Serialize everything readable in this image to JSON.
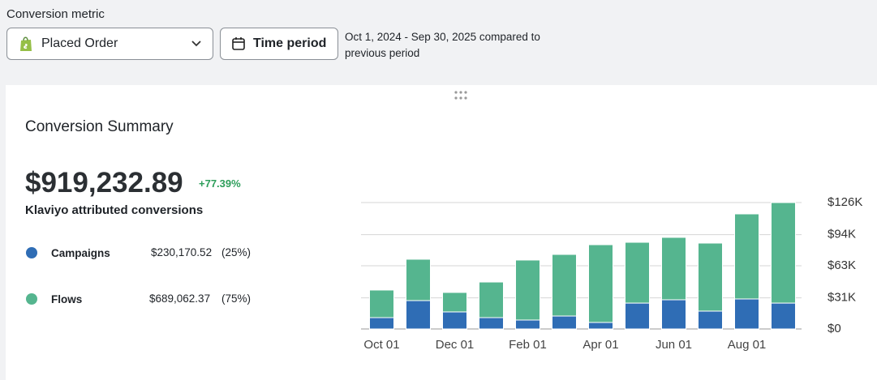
{
  "header": {
    "metric_label": "Conversion metric",
    "metric_select": "Placed Order",
    "time_button": "Time period",
    "period_text": "Oct 1, 2024 - Sep 30, 2025 compared to previous period"
  },
  "summary": {
    "title": "Conversion Summary",
    "total": "$919,232.89",
    "change": "+77.39%",
    "total_label": "Klaviyo attributed conversions",
    "rows": [
      {
        "amount": "$230,170.52",
        "share": "(25%)"
      },
      {
        "amount": "$689,062.37",
        "share": "(75%)"
      }
    ]
  },
  "chart_data": {
    "type": "stacked-bar",
    "categories": [
      "Oct 01",
      null,
      "Dec 01",
      null,
      "Feb 01",
      null,
      "Apr 01",
      null,
      "Jun 01",
      null,
      "Aug 01",
      null
    ],
    "series": [
      {
        "name": "Campaigns",
        "color": "#2f6db5",
        "values": [
          11300,
          28300,
          17000,
          11300,
          8900,
          12900,
          6500,
          25800,
          29100,
          17800,
          29900,
          25800
        ]
      },
      {
        "name": "Flows",
        "color": "#55b58f",
        "values": [
          27500,
          41200,
          19400,
          35500,
          59800,
          61400,
          77500,
          60600,
          62200,
          67800,
          84800,
          100200
        ]
      }
    ],
    "ylim": [
      0,
      126000
    ],
    "yticks": [
      {
        "value": 0,
        "label": "$0"
      },
      {
        "value": 31000,
        "label": "$31K"
      },
      {
        "value": 63000,
        "label": "$63K"
      },
      {
        "value": 94000,
        "label": "$94K"
      },
      {
        "value": 126000,
        "label": "$126K"
      }
    ],
    "grid": true
  }
}
